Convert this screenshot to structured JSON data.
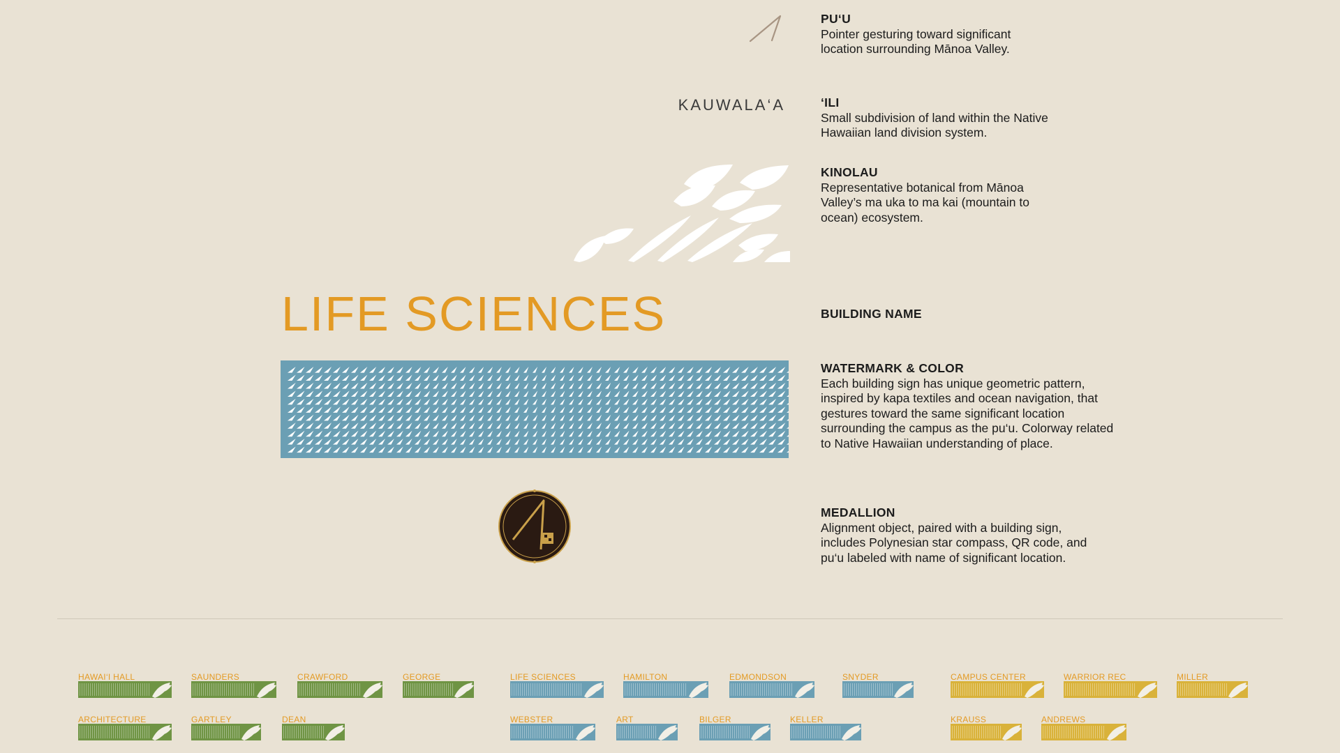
{
  "puu": {
    "title": "PU‘U",
    "desc": "Pointer gesturing toward significant location surrounding Mānoa Valley."
  },
  "ili": {
    "name": "KAUWALA‘A",
    "title": "‘ILI",
    "desc": "Small subdivision of land within the Native Hawaiian land division system."
  },
  "kinolau": {
    "title": "KINOLAU",
    "desc": "Representative botanical from Mānoa Valley’s ma uka to ma kai (mountain to ocean) ecosystem."
  },
  "building": {
    "name": "LIFE SCIENCES",
    "title": "BUILDING NAME"
  },
  "watermark": {
    "title": "WATERMARK & COLOR",
    "desc": "Each building sign has unique geometric pattern, inspired by kapa textiles and ocean navigation, that gestures toward the same significant location surrounding the campus as the pu‘u. Colorway related to Native Hawaiian understanding of place."
  },
  "medallion": {
    "title": "MEDALLION",
    "desc": "Alignment object, paired with a building sign, includes Polynesian star compass, QR code, and pu‘u labeled with name of significant location."
  },
  "colors": {
    "background": "#e9e2d4",
    "label_orange": "#e39a24",
    "watermark_blue": "#6b9fb4",
    "green": "#6f9444",
    "blue": "#6b9fb4",
    "yellow": "#d9b23a",
    "medallion_dark": "#2a1a12",
    "medallion_gold": "#c9a04a"
  },
  "thumbnails": {
    "green": [
      "HAWAI‘I HALL",
      "SAUNDERS",
      "CRAWFORD",
      "GEORGE",
      "ARCHITECTURE",
      "GARTLEY",
      "DEAN"
    ],
    "blue": [
      "LIFE SCIENCES",
      "HAMILTON",
      "EDMONDSON",
      "SNYDER",
      "WEBSTER",
      "ART",
      "BILGER",
      "KELLER"
    ],
    "yellow": [
      "CAMPUS CENTER",
      "WARRIOR REC",
      "MILLER",
      "KRAUSS",
      "ANDREWS"
    ]
  },
  "icons": [
    "puu-pointer-icon",
    "kinolau-leaves-icon",
    "medallion-icon"
  ]
}
